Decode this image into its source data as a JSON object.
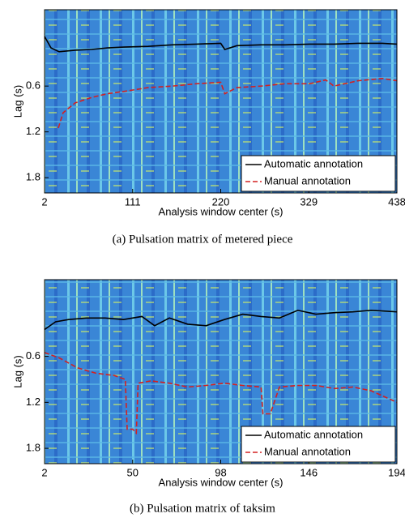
{
  "chart_data": [
    {
      "type": "line",
      "caption": "(a) Pulsation matrix of metered piece",
      "xlabel": "Analysis window center (s)",
      "ylabel": "Lag (s)",
      "xlim": [
        2,
        438
      ],
      "xticks": [
        2,
        111,
        220,
        329,
        438
      ],
      "ylim": [
        -0.4,
        2.0
      ],
      "yticks": [
        0.6,
        1.2,
        1.8
      ],
      "y_inverted": true,
      "legend": "lower right",
      "series": [
        {
          "name": "Automatic annotation",
          "color": "#000000",
          "style": "solid",
          "x": [
            2,
            10,
            20,
            40,
            60,
            80,
            100,
            130,
            160,
            190,
            220,
            225,
            240,
            270,
            300,
            330,
            360,
            390,
            420,
            438
          ],
          "values": [
            -0.05,
            0.1,
            0.15,
            0.13,
            0.12,
            0.1,
            0.09,
            0.08,
            0.06,
            0.05,
            0.04,
            0.12,
            0.07,
            0.06,
            0.06,
            0.05,
            0.05,
            0.04,
            0.04,
            0.05
          ]
        },
        {
          "name": "Manual annotation",
          "color": "#d42020",
          "style": "dashed",
          "x": [
            19,
            25,
            40,
            60,
            80,
            100,
            130,
            160,
            190,
            220,
            225,
            240,
            270,
            300,
            330,
            350,
            360,
            390,
            420,
            438
          ],
          "values": [
            1.15,
            0.95,
            0.82,
            0.75,
            0.7,
            0.67,
            0.62,
            0.6,
            0.57,
            0.55,
            0.7,
            0.62,
            0.6,
            0.57,
            0.57,
            0.52,
            0.6,
            0.53,
            0.5,
            0.53
          ]
        }
      ]
    },
    {
      "type": "line",
      "caption": "(b) Pulsation matrix of taksim",
      "xlabel": "Analysis window center (s)",
      "ylabel": "Lag (s)",
      "xlim": [
        2,
        194
      ],
      "xticks": [
        2,
        50,
        98,
        146,
        194
      ],
      "ylim": [
        -0.4,
        2.0
      ],
      "yticks": [
        0.6,
        1.2,
        1.8
      ],
      "y_inverted": true,
      "legend": "lower right",
      "series": [
        {
          "name": "Automatic annotation",
          "color": "#000000",
          "style": "solid",
          "x": [
            2,
            8,
            15,
            25,
            35,
            45,
            55,
            62,
            70,
            80,
            90,
            100,
            110,
            120,
            130,
            140,
            150,
            160,
            170,
            180,
            194
          ],
          "values": [
            0.25,
            0.15,
            0.12,
            0.1,
            0.1,
            0.12,
            0.08,
            0.2,
            0.1,
            0.18,
            0.2,
            0.12,
            0.05,
            0.08,
            0.1,
            0.0,
            0.05,
            0.03,
            0.02,
            0.0,
            0.02
          ]
        },
        {
          "name": "Manual annotation",
          "color": "#d42020",
          "style": "dashed",
          "x": [
            2,
            10,
            20,
            30,
            40,
            46,
            47,
            50,
            52,
            53,
            60,
            70,
            80,
            90,
            100,
            110,
            120,
            121,
            125,
            130,
            140,
            150,
            160,
            170,
            180,
            194
          ],
          "values": [
            0.55,
            0.62,
            0.75,
            0.82,
            0.85,
            0.9,
            1.55,
            1.55,
            1.6,
            0.95,
            0.92,
            0.95,
            1.0,
            0.98,
            0.95,
            0.98,
            1.0,
            1.35,
            1.35,
            1.0,
            0.98,
            0.98,
            1.02,
            1.0,
            1.05,
            1.2
          ]
        }
      ]
    }
  ]
}
